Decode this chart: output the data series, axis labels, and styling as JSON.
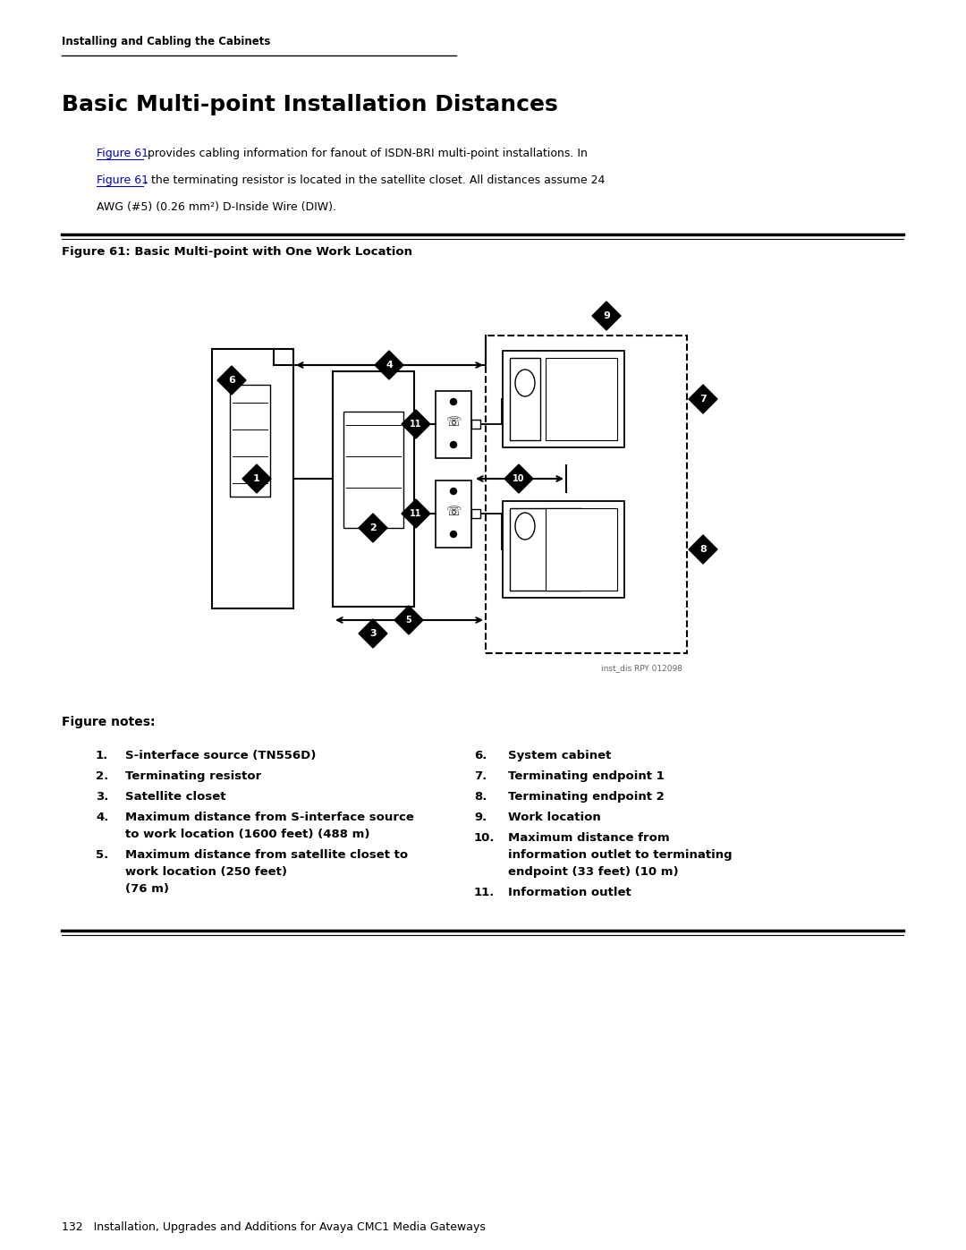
{
  "page_header": "Installing and Cabling the Cabinets",
  "section_title": "Basic Multi-point Installation Distances",
  "figure_caption": "Figure 61: Basic Multi-point with One Work Location",
  "body_text_line1_link": "Figure 61",
  "body_text_line1_rest": " provides cabling information for fanout of ISDN-BRI multi-point installations. In",
  "body_text_line2_link": "Figure 61",
  "body_text_line2_rest": ", the terminating resistor is located in the satellite closet. All distances assume 24",
  "body_text_line3": "AWG (#5) (0.26 mm²) D-Inside Wire (DIW).",
  "figure_credit": "inst_dis RPY 012098",
  "notes_title": "Figure notes:",
  "notes_left": [
    [
      "1.",
      "S-interface source (TN556D)"
    ],
    [
      "2.",
      "Terminating resistor"
    ],
    [
      "3.",
      "Satellite closet"
    ],
    [
      "4.",
      "Maximum distance from S-interface source\nto work location (1600 feet) (488 m)"
    ],
    [
      "5.",
      "Maximum distance from satellite closet to\nwork location (250 feet)\n(76 m)"
    ]
  ],
  "notes_right": [
    [
      "6.",
      "System cabinet"
    ],
    [
      "7.",
      "Terminating endpoint 1"
    ],
    [
      "8.",
      "Terminating endpoint 2"
    ],
    [
      "9.",
      "Work location"
    ],
    [
      "10.",
      "Maximum distance from\ninformation outlet to terminating\nendpoint (33 feet) (10 m)"
    ],
    [
      "11.",
      "Information outlet"
    ]
  ],
  "page_footer": "132   Installation, Upgrades and Additions for Avaya CMC1 Media Gateways",
  "bg_color": "#ffffff",
  "text_color": "#000000",
  "link_color": "#0000cc",
  "diamond_color": "#000000",
  "diamond_text_color": "#ffffff"
}
